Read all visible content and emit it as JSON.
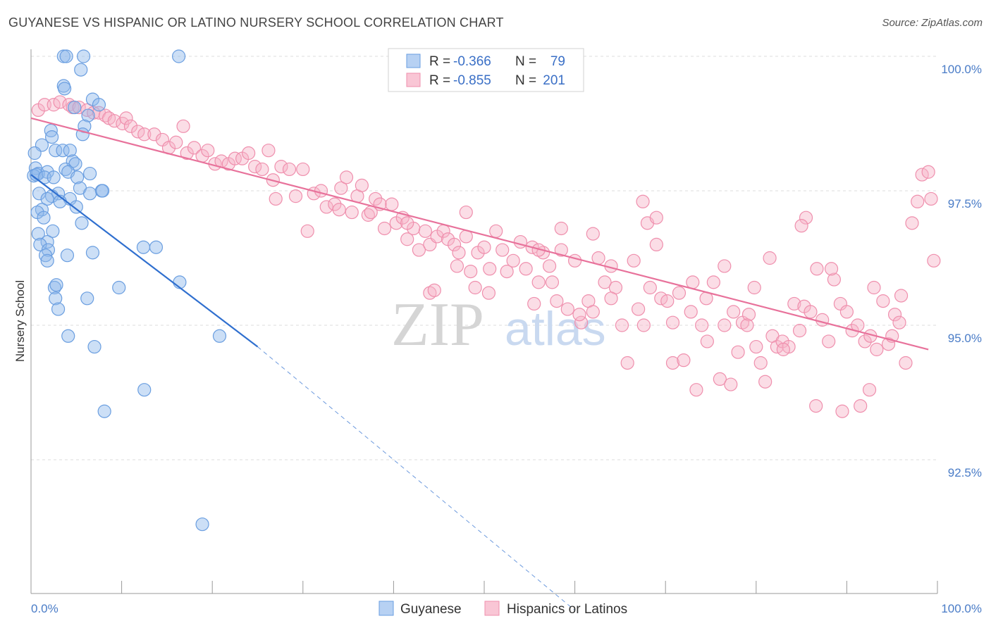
{
  "chart_data": {
    "type": "scatter",
    "title": "GUYANESE VS HISPANIC OR LATINO NURSERY SCHOOL CORRELATION CHART",
    "source": "Source: ZipAtlas.com",
    "ylabel": "Nursery School",
    "xlabel": "",
    "xlim": [
      0,
      100
    ],
    "ylim": [
      89.7,
      100.4
    ],
    "y_ticks": [
      {
        "value": 100.0,
        "label": "100.0%"
      },
      {
        "value": 97.5,
        "label": "97.5%"
      },
      {
        "value": 95.0,
        "label": "95.0%"
      },
      {
        "value": 92.5,
        "label": "92.5%"
      }
    ],
    "x_tick_labels": {
      "left": "0.0%",
      "right": "100.0%"
    },
    "x_minor_ticks": [
      0,
      10,
      20,
      30,
      40,
      50,
      60,
      70,
      80,
      90,
      100
    ],
    "watermark": {
      "zip": "ZIP",
      "atlas": "atlas"
    },
    "legend": {
      "rows": [
        {
          "r_label": "R =",
          "r_value": "-0.366",
          "n_label": "N =",
          "n_value": "79"
        },
        {
          "r_label": "R =",
          "r_value": "-0.855",
          "n_label": "N =",
          "n_value": "201"
        }
      ]
    },
    "series": [
      {
        "name": "Guyanese",
        "color": "#8fb8ea",
        "stroke": "#6a9ee0",
        "trend": {
          "x1": 0,
          "y1": 97.8,
          "x2": 25,
          "y2": 94.6,
          "color": "#2f6fcf",
          "dashed_to_x": 60,
          "dashed_to_y": 89.7
        },
        "points": [
          [
            3.6,
            100
          ],
          [
            3.9,
            100
          ],
          [
            16.3,
            100
          ],
          [
            5.5,
            99.75
          ],
          [
            5.8,
            100
          ],
          [
            3.6,
            99.45
          ],
          [
            3.7,
            99.4
          ],
          [
            6.8,
            99.2
          ],
          [
            4.8,
            99.05
          ],
          [
            7.5,
            99.1
          ],
          [
            6.3,
            98.9
          ],
          [
            5.9,
            98.7
          ],
          [
            2.2,
            98.62
          ],
          [
            2.3,
            98.5
          ],
          [
            5.7,
            98.55
          ],
          [
            1.2,
            98.35
          ],
          [
            2.7,
            98.25
          ],
          [
            3.5,
            98.25
          ],
          [
            4.3,
            98.25
          ],
          [
            0.4,
            98.2
          ],
          [
            4.6,
            98.05
          ],
          [
            4.9,
            98.0
          ],
          [
            0.5,
            97.92
          ],
          [
            0.8,
            97.82
          ],
          [
            1.8,
            97.85
          ],
          [
            3.8,
            97.9
          ],
          [
            4.1,
            97.85
          ],
          [
            6.5,
            97.82
          ],
          [
            0.3,
            97.78
          ],
          [
            0.6,
            97.8
          ],
          [
            1.5,
            97.75
          ],
          [
            2.5,
            97.75
          ],
          [
            5.1,
            97.75
          ],
          [
            5.4,
            97.55
          ],
          [
            7.8,
            97.5
          ],
          [
            7.9,
            97.5
          ],
          [
            0.9,
            97.45
          ],
          [
            3.0,
            97.45
          ],
          [
            4.3,
            97.35
          ],
          [
            6.5,
            97.45
          ],
          [
            2.3,
            97.4
          ],
          [
            1.8,
            97.35
          ],
          [
            3.2,
            97.3
          ],
          [
            5.0,
            97.2
          ],
          [
            1.2,
            97.15
          ],
          [
            0.7,
            97.1
          ],
          [
            1.4,
            97.0
          ],
          [
            5.6,
            96.9
          ],
          [
            0.8,
            96.7
          ],
          [
            2.4,
            96.75
          ],
          [
            1.8,
            96.55
          ],
          [
            1.0,
            96.5
          ],
          [
            1.9,
            96.4
          ],
          [
            4.0,
            96.3
          ],
          [
            6.8,
            96.35
          ],
          [
            12.4,
            96.45
          ],
          [
            13.8,
            96.45
          ],
          [
            1.6,
            96.3
          ],
          [
            1.8,
            96.2
          ],
          [
            16.4,
            95.8
          ],
          [
            2.6,
            95.7
          ],
          [
            2.8,
            95.75
          ],
          [
            9.7,
            95.7
          ],
          [
            2.7,
            95.5
          ],
          [
            6.2,
            95.5
          ],
          [
            3.0,
            95.3
          ],
          [
            20.8,
            94.8
          ],
          [
            4.1,
            94.8
          ],
          [
            7.0,
            94.6
          ],
          [
            12.5,
            93.8
          ],
          [
            8.1,
            93.4
          ],
          [
            18.9,
            91.3
          ]
        ]
      },
      {
        "name": "Hispanics or Latinos",
        "color": "#f6b4c8",
        "stroke": "#ef8fad",
        "trend": {
          "x1": 0,
          "y1": 98.85,
          "x2": 99,
          "y2": 94.55,
          "color": "#e8729b"
        },
        "points": [
          [
            0.8,
            99
          ],
          [
            1.5,
            99.1
          ],
          [
            2.5,
            99.1
          ],
          [
            3.2,
            99.15
          ],
          [
            4.2,
            99.1
          ],
          [
            4.6,
            99.05
          ],
          [
            5.3,
            99.05
          ],
          [
            6.2,
            99.0
          ],
          [
            6.9,
            98.95
          ],
          [
            7.5,
            98.95
          ],
          [
            8.2,
            98.9
          ],
          [
            8.6,
            98.85
          ],
          [
            9.2,
            98.8
          ],
          [
            10.1,
            98.75
          ],
          [
            10.5,
            98.85
          ],
          [
            11.0,
            98.7
          ],
          [
            11.8,
            98.6
          ],
          [
            12.5,
            98.55
          ],
          [
            13.6,
            98.55
          ],
          [
            14.5,
            98.45
          ],
          [
            15.2,
            98.3
          ],
          [
            16.0,
            98.4
          ],
          [
            16.8,
            98.7
          ],
          [
            17.2,
            98.2
          ],
          [
            18.0,
            98.3
          ],
          [
            18.9,
            98.15
          ],
          [
            19.5,
            98.25
          ],
          [
            20.3,
            98.0
          ],
          [
            21.0,
            98.05
          ],
          [
            21.8,
            98.0
          ],
          [
            22.5,
            98.1
          ],
          [
            23.3,
            98.1
          ],
          [
            24.0,
            98.2
          ],
          [
            24.7,
            97.95
          ],
          [
            25.5,
            97.9
          ],
          [
            26.2,
            98.25
          ],
          [
            26.7,
            97.7
          ],
          [
            27.0,
            97.35
          ],
          [
            27.6,
            97.95
          ],
          [
            28.5,
            97.9
          ],
          [
            29.2,
            97.4
          ],
          [
            30.0,
            97.9
          ],
          [
            30.5,
            96.75
          ],
          [
            31.2,
            97.45
          ],
          [
            32.0,
            97.5
          ],
          [
            32.6,
            97.2
          ],
          [
            33.5,
            97.25
          ],
          [
            34.2,
            97.55
          ],
          [
            34.8,
            97.75
          ],
          [
            35.4,
            97.1
          ],
          [
            36.0,
            97.4
          ],
          [
            36.5,
            97.6
          ],
          [
            37.2,
            97.05
          ],
          [
            38.0,
            97.35
          ],
          [
            38.5,
            97.25
          ],
          [
            39.0,
            96.8
          ],
          [
            39.8,
            97.25
          ],
          [
            40.3,
            96.9
          ],
          [
            41.0,
            97.0
          ],
          [
            41.5,
            96.6
          ],
          [
            42.2,
            96.8
          ],
          [
            42.8,
            96.4
          ],
          [
            43.5,
            96.75
          ],
          [
            44.0,
            96.5
          ],
          [
            44.8,
            96.65
          ],
          [
            45.5,
            96.75
          ],
          [
            46.0,
            96.6
          ],
          [
            46.7,
            96.5
          ],
          [
            47.2,
            96.35
          ],
          [
            48.0,
            96.65
          ],
          [
            48.5,
            96.0
          ],
          [
            49.3,
            96.35
          ],
          [
            50.0,
            96.45
          ],
          [
            50.6,
            96.05
          ],
          [
            51.3,
            96.75
          ],
          [
            52.0,
            96.4
          ],
          [
            52.5,
            96.0
          ],
          [
            53.2,
            96.2
          ],
          [
            54.0,
            96.55
          ],
          [
            54.6,
            96.05
          ],
          [
            55.3,
            96.45
          ],
          [
            56.0,
            95.8
          ],
          [
            56.5,
            96.35
          ],
          [
            57.2,
            96.1
          ],
          [
            58.0,
            95.45
          ],
          [
            58.5,
            96.8
          ],
          [
            59.2,
            95.3
          ],
          [
            60.0,
            96.2
          ],
          [
            60.7,
            95.05
          ],
          [
            61.5,
            95.45
          ],
          [
            62.0,
            96.7
          ],
          [
            62.6,
            96.25
          ],
          [
            63.3,
            95.8
          ],
          [
            64.0,
            96.1
          ],
          [
            64.5,
            95.7
          ],
          [
            65.2,
            95.0
          ],
          [
            65.8,
            94.3
          ],
          [
            66.5,
            96.2
          ],
          [
            67.0,
            95.3
          ],
          [
            67.6,
            95.0
          ],
          [
            68.3,
            95.7
          ],
          [
            69.0,
            96.5
          ],
          [
            69.5,
            95.5
          ],
          [
            70.2,
            95.45
          ],
          [
            70.8,
            94.3
          ],
          [
            71.5,
            95.6
          ],
          [
            72.0,
            94.35
          ],
          [
            72.8,
            95.25
          ],
          [
            73.4,
            93.8
          ],
          [
            74.0,
            95.0
          ],
          [
            74.6,
            94.7
          ],
          [
            75.3,
            95.8
          ],
          [
            76.0,
            94.0
          ],
          [
            76.5,
            95.0
          ],
          [
            77.2,
            93.9
          ],
          [
            78.0,
            94.5
          ],
          [
            78.5,
            95.05
          ],
          [
            79.2,
            95.2
          ],
          [
            79.8,
            95.7
          ],
          [
            80.5,
            94.3
          ],
          [
            81.0,
            93.95
          ],
          [
            81.8,
            94.8
          ],
          [
            82.3,
            94.6
          ],
          [
            82.9,
            94.7
          ],
          [
            83.6,
            94.6
          ],
          [
            84.2,
            95.4
          ],
          [
            84.8,
            94.9
          ],
          [
            85.3,
            95.35
          ],
          [
            86.0,
            95.25
          ],
          [
            86.6,
            93.5
          ],
          [
            87.3,
            95.1
          ],
          [
            88.0,
            94.7
          ],
          [
            88.6,
            95.85
          ],
          [
            89.3,
            95.4
          ],
          [
            90.0,
            95.25
          ],
          [
            90.6,
            94.9
          ],
          [
            91.2,
            95.0
          ],
          [
            92.0,
            94.7
          ],
          [
            92.6,
            94.8
          ],
          [
            93.3,
            94.55
          ],
          [
            94.0,
            95.45
          ],
          [
            94.6,
            94.65
          ],
          [
            95.3,
            95.2
          ],
          [
            95.8,
            95.05
          ],
          [
            96.5,
            94.3
          ],
          [
            97.2,
            96.9
          ],
          [
            97.8,
            97.3
          ],
          [
            98.3,
            97.8
          ],
          [
            99.0,
            97.85
          ],
          [
            99.3,
            97.35
          ],
          [
            99.6,
            96.2
          ],
          [
            68.0,
            96.9
          ],
          [
            67.5,
            97.3
          ],
          [
            69.0,
            97.0
          ],
          [
            85.5,
            97.0
          ],
          [
            85.0,
            96.85
          ],
          [
            81.5,
            96.25
          ],
          [
            86.7,
            96.05
          ],
          [
            88.3,
            96.05
          ],
          [
            76.5,
            96.1
          ],
          [
            70.8,
            95.05
          ],
          [
            64.0,
            95.5
          ],
          [
            62.0,
            95.25
          ],
          [
            55.5,
            95.4
          ],
          [
            57.5,
            95.8
          ],
          [
            60.5,
            95.2
          ],
          [
            50.5,
            95.6
          ],
          [
            44.0,
            95.6
          ],
          [
            44.5,
            95.65
          ],
          [
            47.0,
            96.1
          ],
          [
            34.0,
            97.15
          ],
          [
            37.5,
            97.1
          ],
          [
            41.5,
            96.9
          ],
          [
            48.0,
            97.1
          ],
          [
            49.0,
            95.7
          ],
          [
            56.0,
            96.4
          ],
          [
            58.5,
            96.4
          ],
          [
            73.0,
            95.8
          ],
          [
            74.5,
            95.5
          ],
          [
            77.5,
            95.25
          ],
          [
            79.0,
            95.0
          ],
          [
            80.0,
            94.6
          ],
          [
            83.0,
            94.55
          ],
          [
            89.5,
            93.4
          ],
          [
            91.5,
            93.5
          ],
          [
            92.5,
            93.8
          ],
          [
            93.0,
            95.7
          ],
          [
            95.0,
            94.8
          ],
          [
            96.0,
            95.55
          ]
        ]
      }
    ]
  }
}
